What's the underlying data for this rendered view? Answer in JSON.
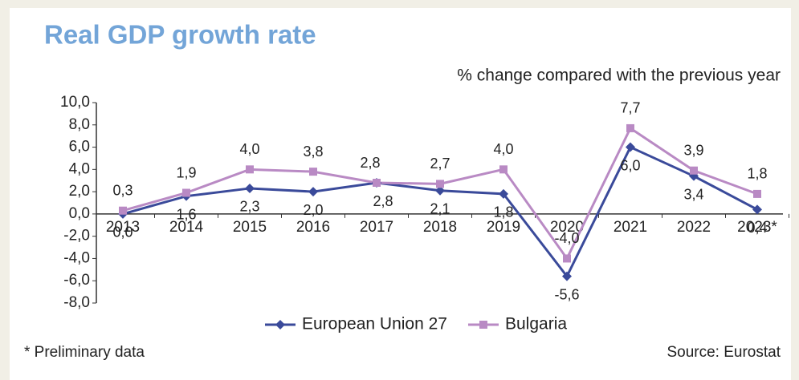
{
  "chart_data": {
    "type": "line",
    "title": "Real GDP growth rate",
    "subtitle": "% change compared with the previous year",
    "categories": [
      "2013",
      "2014",
      "2015",
      "2016",
      "2017",
      "2018",
      "2019",
      "2020",
      "2021",
      "2022",
      "2023*"
    ],
    "series": [
      {
        "name": "European Union 27",
        "color": "#3a4a9a",
        "marker": "diamond",
        "values": [
          0.0,
          1.6,
          2.3,
          2.0,
          2.8,
          2.1,
          1.8,
          -5.6,
          6.0,
          3.4,
          0.4
        ],
        "value_labels": [
          "0,0",
          "1,6",
          "2,3",
          "2,0",
          "2,8",
          "2,1",
          "1,8",
          "-5,6",
          "6,0",
          "3,4",
          "0,4"
        ]
      },
      {
        "name": "Bulgaria",
        "color": "#b98ac4",
        "marker": "square",
        "values": [
          0.3,
          1.9,
          4.0,
          3.8,
          2.8,
          2.7,
          4.0,
          -4.0,
          7.7,
          3.9,
          1.8
        ],
        "value_labels": [
          "0,3",
          "1,9",
          "4,0",
          "3,8",
          "2,8",
          "2,7",
          "4,0",
          "-4,0",
          "7,7",
          "3,9",
          "1,8"
        ]
      }
    ],
    "ylim": [
      -8,
      10
    ],
    "yticks": [
      {
        "value": 10,
        "label": "10,0"
      },
      {
        "value": 8,
        "label": "8,0"
      },
      {
        "value": 6,
        "label": "6,0"
      },
      {
        "value": 4,
        "label": "4,0"
      },
      {
        "value": 2,
        "label": "2,0"
      },
      {
        "value": 0,
        "label": "0,0"
      },
      {
        "value": -2,
        "label": "-2,0"
      },
      {
        "value": -4,
        "label": "-4,0"
      },
      {
        "value": -6,
        "label": "-6,0"
      },
      {
        "value": -8,
        "label": "-8,0"
      }
    ],
    "legend": "bottom",
    "footnote": "* Preliminary data",
    "source": "Source: Eurostat"
  }
}
